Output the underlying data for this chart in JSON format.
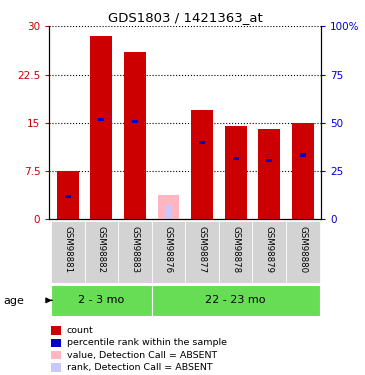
{
  "title": "GDS1803 / 1421363_at",
  "samples": [
    "GSM98881",
    "GSM98882",
    "GSM98883",
    "GSM98876",
    "GSM98877",
    "GSM98878",
    "GSM98879",
    "GSM98880"
  ],
  "count_values": [
    7.5,
    28.5,
    26.0,
    0.0,
    17.0,
    14.5,
    14.0,
    15.0
  ],
  "rank_values": [
    3.5,
    15.5,
    15.2,
    null,
    12.0,
    9.5,
    9.2,
    10.0
  ],
  "absent_value": [
    null,
    null,
    null,
    3.8,
    null,
    null,
    null,
    null
  ],
  "absent_rank": [
    null,
    null,
    null,
    2.2,
    null,
    null,
    null,
    null
  ],
  "is_absent": [
    false,
    false,
    false,
    true,
    false,
    false,
    false,
    false
  ],
  "groups": [
    {
      "label": "2 - 3 mo",
      "start": 0,
      "end": 3,
      "color": "#66dd55"
    },
    {
      "label": "22 - 23 mo",
      "start": 3,
      "end": 8,
      "color": "#66dd55"
    }
  ],
  "ylim": [
    0,
    30
  ],
  "yticks": [
    0,
    7.5,
    15,
    22.5,
    30
  ],
  "ytick_labels": [
    "0",
    "7.5",
    "15",
    "22.5",
    "30"
  ],
  "right_ytick_labels": [
    "0",
    "25",
    "50",
    "75",
    "100%"
  ],
  "color_count": "#cc0000",
  "color_rank": "#0000cc",
  "color_absent_value": "#ffb6c1",
  "color_absent_rank": "#c8c8ff",
  "bar_bg_color": "#d3d3d3",
  "legend_items": [
    {
      "color": "#cc0000",
      "label": "count"
    },
    {
      "color": "#0000cc",
      "label": "percentile rank within the sample"
    },
    {
      "color": "#ffb6c1",
      "label": "value, Detection Call = ABSENT"
    },
    {
      "color": "#c8c8ff",
      "label": "rank, Detection Call = ABSENT"
    }
  ]
}
